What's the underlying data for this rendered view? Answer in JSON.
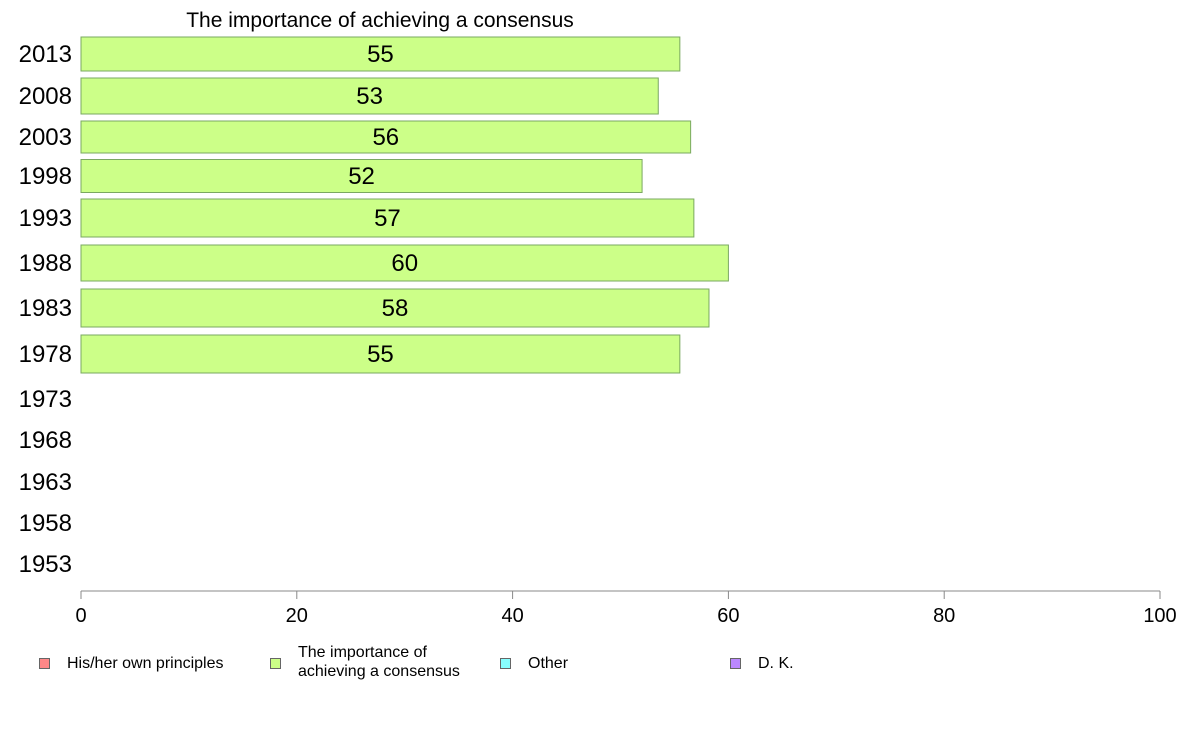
{
  "chart_data": {
    "type": "bar",
    "orientation": "horizontal",
    "title": "The importance of achieving a consensus",
    "categories": [
      "2013",
      "2008",
      "2003",
      "1998",
      "1993",
      "1988",
      "1983",
      "1978",
      "1973",
      "1968",
      "1963",
      "1958",
      "1953"
    ],
    "series": [
      {
        "name": "The importance of achieving a consensus",
        "values": [
          55.5,
          53.5,
          56.5,
          52,
          56.8,
          60,
          58.2,
          55.5,
          null,
          null,
          null,
          null,
          null
        ],
        "labels": [
          "55",
          "53",
          "56",
          "52",
          "57",
          "60",
          "58",
          "55",
          "",
          "",
          "",
          "",
          ""
        ],
        "color": "#ccff88"
      }
    ],
    "xlim": [
      0,
      100
    ],
    "xticks": [
      "0",
      "20",
      "40",
      "60",
      "80",
      "100"
    ],
    "grid": false,
    "legend_position": "bottom"
  },
  "legend": {
    "items": [
      {
        "label": "His/her own principles",
        "color": "#ff8888"
      },
      {
        "label": "The importance of achieving a consensus",
        "color": "#ccff88"
      },
      {
        "label": "Other",
        "color": "#88ffff"
      },
      {
        "label": "D. K.",
        "color": "#bb88ff"
      }
    ]
  }
}
